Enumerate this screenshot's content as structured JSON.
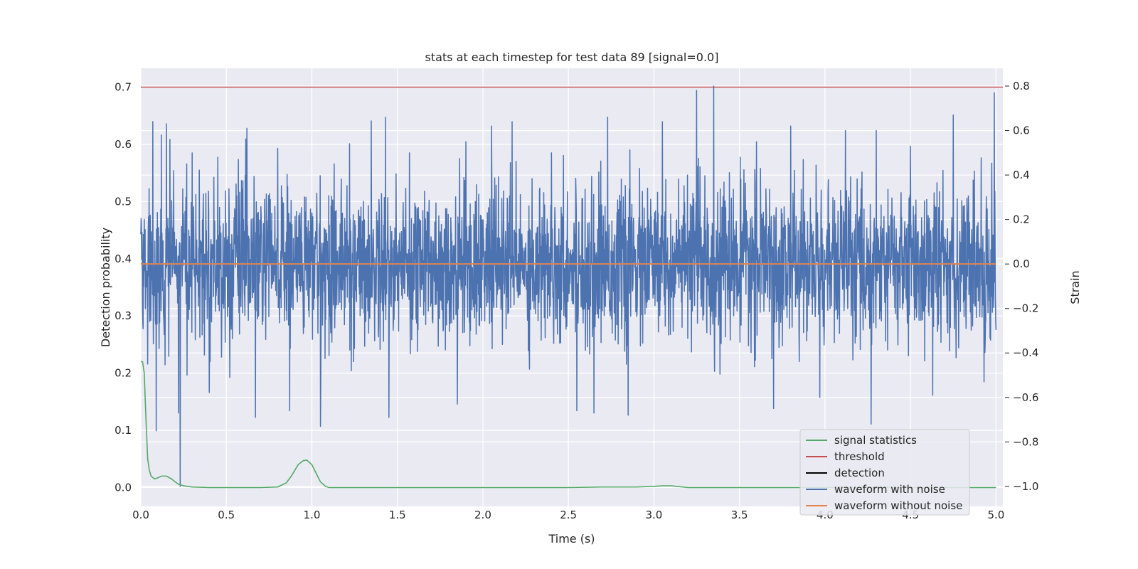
{
  "chart_data": {
    "type": "line",
    "title": "stats at each timestep for test data 89 [signal=0.0]",
    "xlabel": "Time (s)",
    "ylabel_left": "Detection probability",
    "ylabel_right": "Strain",
    "xlim": [
      0.0,
      5.04
    ],
    "ylim_left": [
      -0.033,
      0.733
    ],
    "ylim_right": [
      -1.09,
      0.88
    ],
    "x_ticks": [
      "0.0",
      "0.5",
      "1.0",
      "1.5",
      "2.0",
      "2.5",
      "3.0",
      "3.5",
      "4.0",
      "4.5",
      "5.0"
    ],
    "x_tick_values": [
      0.0,
      0.5,
      1.0,
      1.5,
      2.0,
      2.5,
      3.0,
      3.5,
      4.0,
      4.5,
      5.0
    ],
    "y_left_ticks": [
      "0.0",
      "0.1",
      "0.2",
      "0.3",
      "0.4",
      "0.5",
      "0.6",
      "0.7"
    ],
    "y_left_tick_values": [
      0.0,
      0.1,
      0.2,
      0.3,
      0.4,
      0.5,
      0.6,
      0.7
    ],
    "y_right_ticks": [
      "−1.0",
      "−0.8",
      "−0.6",
      "−0.4",
      "−0.2",
      "0.0",
      "0.2",
      "0.4",
      "0.6",
      "0.8"
    ],
    "y_right_tick_values": [
      -1.0,
      -0.8,
      -0.6,
      -0.4,
      -0.2,
      0.0,
      0.2,
      0.4,
      0.6,
      0.8
    ],
    "grid": true,
    "legend_position": "lower-right",
    "series": [
      {
        "name": "signal statistics",
        "axis": "left",
        "color": "#55a868",
        "x": [
          0.0,
          0.01,
          0.02,
          0.03,
          0.04,
          0.05,
          0.06,
          0.08,
          0.1,
          0.12,
          0.15,
          0.18,
          0.2,
          0.22,
          0.25,
          0.3,
          0.4,
          0.5,
          0.7,
          0.8,
          0.85,
          0.88,
          0.9,
          0.92,
          0.95,
          0.97,
          1.0,
          1.03,
          1.05,
          1.08,
          1.1,
          1.5,
          2.0,
          2.5,
          2.7,
          2.8,
          2.9,
          3.0,
          3.05,
          3.1,
          3.2,
          3.5,
          4.0,
          4.5,
          5.0
        ],
        "y": [
          0.22,
          0.22,
          0.2,
          0.12,
          0.05,
          0.03,
          0.02,
          0.015,
          0.017,
          0.02,
          0.02,
          0.015,
          0.01,
          0.006,
          0.003,
          0.001,
          0.0,
          0.0,
          0.0,
          0.001,
          0.008,
          0.02,
          0.03,
          0.04,
          0.047,
          0.048,
          0.04,
          0.022,
          0.01,
          0.002,
          0.0,
          0.0,
          0.0,
          0.0,
          0.001,
          0.001,
          0.001,
          0.002,
          0.003,
          0.003,
          0.0,
          0.0,
          0.0,
          0.0,
          0.0
        ]
      },
      {
        "name": "threshold",
        "axis": "left",
        "color": "#c44e52",
        "x": [
          0.0,
          5.04
        ],
        "y": [
          0.7,
          0.7
        ]
      },
      {
        "name": "detection",
        "axis": "left",
        "color": "#000000",
        "x": [],
        "y": []
      },
      {
        "name": "waveform with noise",
        "axis": "right",
        "color": "#4c72b0",
        "x_range": [
          0.0,
          5.0
        ],
        "typical_amplitude": 0.17,
        "spikes": [
          {
            "x": 0.04,
            "y": -0.45
          },
          {
            "x": 0.07,
            "y": 0.64
          },
          {
            "x": 0.09,
            "y": -0.75
          },
          {
            "x": 0.12,
            "y": 0.58
          },
          {
            "x": 0.15,
            "y": 0.63
          },
          {
            "x": 0.17,
            "y": 0.56
          },
          {
            "x": 0.22,
            "y": -0.67
          },
          {
            "x": 0.23,
            "y": -1.0
          },
          {
            "x": 0.27,
            "y": -0.5
          },
          {
            "x": 0.3,
            "y": 0.5
          },
          {
            "x": 0.45,
            "y": 0.48
          },
          {
            "x": 0.52,
            "y": -0.51
          },
          {
            "x": 0.57,
            "y": 0.47
          },
          {
            "x": 0.62,
            "y": 0.61
          },
          {
            "x": 0.67,
            "y": -0.69
          },
          {
            "x": 0.8,
            "y": 0.52
          },
          {
            "x": 0.87,
            "y": -0.66
          },
          {
            "x": 1.05,
            "y": -0.73
          },
          {
            "x": 1.13,
            "y": 0.45
          },
          {
            "x": 1.23,
            "y": -0.48
          },
          {
            "x": 1.43,
            "y": 0.66
          },
          {
            "x": 1.45,
            "y": -0.69
          },
          {
            "x": 1.57,
            "y": 0.5
          },
          {
            "x": 1.85,
            "y": -0.63
          },
          {
            "x": 1.9,
            "y": 0.55
          },
          {
            "x": 2.05,
            "y": 0.62
          },
          {
            "x": 2.17,
            "y": 0.64
          },
          {
            "x": 2.4,
            "y": 0.5
          },
          {
            "x": 2.55,
            "y": -0.66
          },
          {
            "x": 2.65,
            "y": -0.67
          },
          {
            "x": 2.73,
            "y": 0.66
          },
          {
            "x": 2.85,
            "y": -0.68
          },
          {
            "x": 3.05,
            "y": 0.64
          },
          {
            "x": 3.25,
            "y": 0.78
          },
          {
            "x": 3.35,
            "y": 0.8
          },
          {
            "x": 3.6,
            "y": 0.55
          },
          {
            "x": 3.7,
            "y": -0.65
          },
          {
            "x": 3.8,
            "y": 0.62
          },
          {
            "x": 3.97,
            "y": -0.6
          },
          {
            "x": 4.12,
            "y": 0.6
          },
          {
            "x": 4.27,
            "y": -0.72
          },
          {
            "x": 4.3,
            "y": 0.6
          },
          {
            "x": 4.5,
            "y": 0.53
          },
          {
            "x": 4.63,
            "y": -0.59
          },
          {
            "x": 4.75,
            "y": 0.67
          },
          {
            "x": 4.93,
            "y": -0.53
          },
          {
            "x": 4.99,
            "y": 0.77
          }
        ]
      },
      {
        "name": "waveform without noise",
        "axis": "right",
        "color": "#dd8452",
        "x": [
          0.0,
          5.0
        ],
        "y": [
          0.0,
          0.0
        ]
      }
    ]
  }
}
